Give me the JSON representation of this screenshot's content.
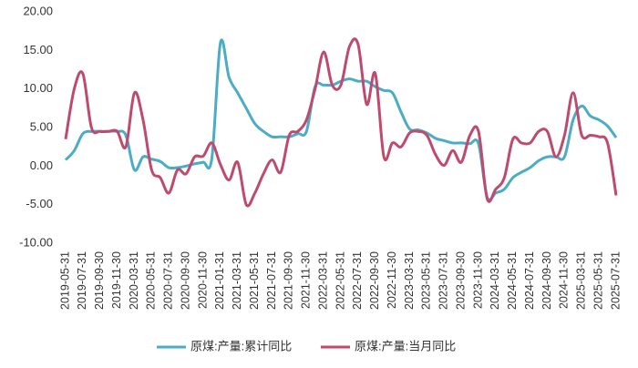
{
  "chart_data": {
    "type": "line",
    "categories": [
      "2019-05-31",
      null,
      "2019-07-31",
      null,
      "2019-09-30",
      null,
      "2019-11-30",
      null,
      "2020-03-31",
      null,
      "2020-05-31",
      null,
      "2020-07-31",
      null,
      "2020-09-30",
      null,
      "2020-11-30",
      null,
      "2021-01-31",
      null,
      "2021-03-31",
      null,
      "2021-05-31",
      null,
      "2021-07-31",
      null,
      "2021-09-30",
      null,
      "2021-11-30",
      null,
      "2022-03-31",
      null,
      "2022-05-31",
      null,
      "2022-07-31",
      null,
      "2022-09-30",
      null,
      "2022-11-30",
      null,
      "2023-03-31",
      null,
      "2023-05-31",
      null,
      "2023-07-31",
      null,
      "2023-09-30",
      null,
      "2023-11-30",
      null,
      "2024-03-31",
      null,
      "2024-05-31",
      null,
      "2024-07-31",
      null,
      "2024-09-30",
      null,
      "2024-11-30",
      null,
      "2025-03-31",
      null,
      "2025-05-31",
      null,
      "2025-07-31"
    ],
    "series": [
      {
        "name": "原煤:产量:累计同比",
        "color": "#4bacc6",
        "values": [
          0.8,
          2.0,
          4.2,
          4.5,
          4.5,
          4.5,
          4.5,
          4.0,
          -0.5,
          1.2,
          0.9,
          0.6,
          -0.2,
          -0.2,
          0,
          0.3,
          0.5,
          1.0,
          16.0,
          11.5,
          9.5,
          7.5,
          5.5,
          4.5,
          3.8,
          3.8,
          3.8,
          4.2,
          4.5,
          10.3,
          10.5,
          10.5,
          11.0,
          11.3,
          11.0,
          11.0,
          10.3,
          9.8,
          9.5,
          7.0,
          4.8,
          4.7,
          4.3,
          3.6,
          3.3,
          3.0,
          3.0,
          2.9,
          2.9,
          -4.0,
          -3.5,
          -3.0,
          -1.5,
          -0.8,
          -0.2,
          0.7,
          1.2,
          1.2,
          1.2,
          6.0,
          7.8,
          6.5,
          6.0,
          5.2,
          3.7
        ]
      },
      {
        "name": "原煤:产量:当月同比",
        "color": "#be4b6e",
        "values": [
          3.5,
          10.0,
          12.0,
          5.0,
          4.5,
          4.5,
          4.5,
          2.5,
          9.5,
          6.0,
          -0.5,
          -1.5,
          -3.5,
          -0.5,
          -1.0,
          1.2,
          1.3,
          3.0,
          0.2,
          -1.8,
          0.5,
          -5.0,
          -3.5,
          -1.0,
          0.8,
          -0.8,
          4.0,
          4.5,
          6.0,
          10.0,
          14.8,
          10.5,
          10.5,
          15.5,
          15.8,
          8.0,
          12.0,
          1.2,
          3.0,
          2.5,
          4.3,
          4.5,
          4.0,
          1.5,
          0.1,
          2.0,
          0.5,
          4.0,
          4.5,
          -4.2,
          -3.0,
          -1.5,
          3.5,
          3.0,
          3.0,
          4.5,
          4.5,
          1.2,
          4.0,
          9.5,
          4.0,
          4.0,
          3.8,
          3.0,
          -3.8
        ]
      }
    ],
    "ylim": [
      -10,
      20
    ],
    "yticks": [
      {
        "value": -10,
        "label": "-10.00"
      },
      {
        "value": -5,
        "label": "-5.00"
      },
      {
        "value": 0,
        "label": "0.00"
      },
      {
        "value": 5,
        "label": "5.00"
      },
      {
        "value": 10,
        "label": "10.00"
      },
      {
        "value": 15,
        "label": "15.00"
      },
      {
        "value": 20,
        "label": "20.00"
      }
    ],
    "grid": false,
    "legend": "bottom"
  }
}
